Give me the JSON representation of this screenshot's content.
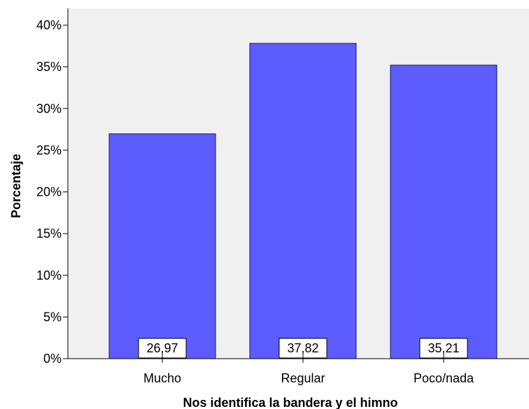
{
  "chart_data": {
    "type": "bar",
    "categories": [
      "Mucho",
      "Regular",
      "Poco/nada"
    ],
    "values": [
      26.97,
      37.82,
      35.21
    ],
    "data_labels": [
      "26,97",
      "37,82",
      "35,21"
    ],
    "xlabel": "Nos identifica la bandera y el himno",
    "ylabel": "Porcentaje",
    "ylim": [
      0,
      40
    ],
    "yticks": [
      0,
      5,
      10,
      15,
      20,
      25,
      30,
      35,
      40
    ],
    "ytick_labels": [
      "0%",
      "5%",
      "10%",
      "15%",
      "20%",
      "25%",
      "30%",
      "35%",
      "40%"
    ],
    "grid": false,
    "legend": "none",
    "colors": {
      "bar_fill": "#5c5cff",
      "bar_stroke": "#1a1a66",
      "plot_background": "#f0f0f0",
      "axis": "#000000"
    }
  }
}
